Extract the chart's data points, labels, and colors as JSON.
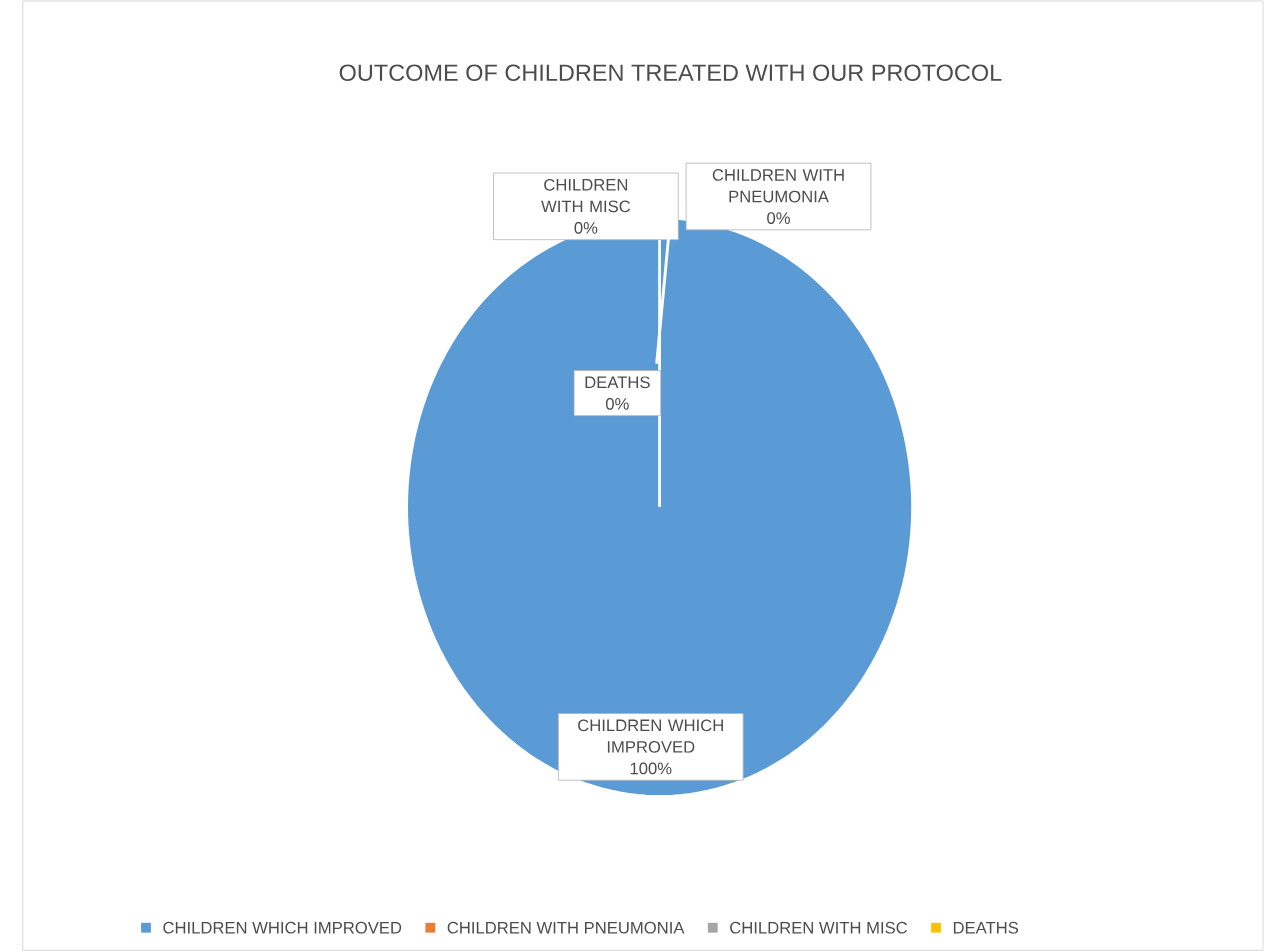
{
  "chart_data": {
    "type": "pie",
    "title": "OUTCOME OF CHILDREN TREATED WITH OUR PROTOCOL",
    "categories": [
      "CHILDREN WHICH IMPROVED",
      "CHILDREN WITH PNEUMONIA",
      "CHILDREN WITH MISC",
      "DEATHS"
    ],
    "values": [
      100,
      0,
      0,
      0
    ],
    "value_labels": [
      "100%",
      "0%",
      "0%",
      "0%"
    ],
    "colors": [
      "#5b9bd5",
      "#ed7d31",
      "#a5a5a5",
      "#ffc000"
    ],
    "legend": "bottom"
  }
}
